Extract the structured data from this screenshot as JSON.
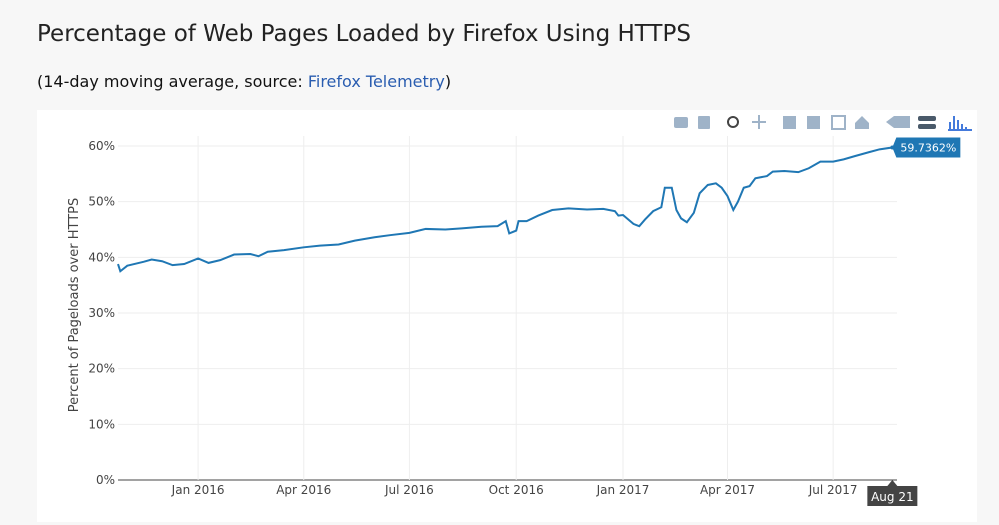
{
  "title": "Percentage of Web Pages Loaded by Firefox Using HTTPS",
  "subtitle": {
    "before": "(14-day moving average, source: ",
    "link": "Firefox Telemetry",
    "after": ")"
  },
  "chart_data": {
    "type": "line",
    "y_label": "Percent of Pageloads over HTTPS",
    "xlim": [
      "2015-10-24",
      "2017-08-25"
    ],
    "xticks": [
      {
        "value": "2016-01-01",
        "label": "Jan 2016"
      },
      {
        "value": "2016-04-01",
        "label": "Apr 2016"
      },
      {
        "value": "2016-07-01",
        "label": "Jul 2016"
      },
      {
        "value": "2016-10-01",
        "label": "Oct 2016"
      },
      {
        "value": "2017-01-01",
        "label": "Jan 2017"
      },
      {
        "value": "2017-04-01",
        "label": "Apr 2017"
      },
      {
        "value": "2017-07-01",
        "label": "Jul 2017"
      }
    ],
    "ylim": [
      0,
      60
    ],
    "yticks": [
      {
        "value": 0,
        "label": "0%"
      },
      {
        "value": 10,
        "label": "10%"
      },
      {
        "value": 20,
        "label": "20%"
      },
      {
        "value": 30,
        "label": "30%"
      },
      {
        "value": 40,
        "label": "40%"
      },
      {
        "value": 50,
        "label": "50%"
      },
      {
        "value": 60,
        "label": "60%"
      }
    ],
    "grid": true,
    "x": [
      "2015-10-24",
      "2015-10-26",
      "2015-11-01",
      "2015-11-15",
      "2015-11-22",
      "2015-12-01",
      "2015-12-10",
      "2015-12-20",
      "2016-01-01",
      "2016-01-10",
      "2016-01-20",
      "2016-02-01",
      "2016-02-15",
      "2016-02-22",
      "2016-03-01",
      "2016-03-15",
      "2016-04-01",
      "2016-04-15",
      "2016-05-01",
      "2016-05-15",
      "2016-06-01",
      "2016-06-15",
      "2016-07-01",
      "2016-07-15",
      "2016-08-01",
      "2016-08-15",
      "2016-09-01",
      "2016-09-15",
      "2016-09-22",
      "2016-09-25",
      "2016-10-01",
      "2016-10-03",
      "2016-10-10",
      "2016-10-20",
      "2016-11-01",
      "2016-11-15",
      "2016-12-01",
      "2016-12-15",
      "2016-12-25",
      "2016-12-28",
      "2017-01-01",
      "2017-01-10",
      "2017-01-15",
      "2017-01-20",
      "2017-01-27",
      "2017-02-03",
      "2017-02-06",
      "2017-02-12",
      "2017-02-16",
      "2017-02-20",
      "2017-02-25",
      "2017-03-03",
      "2017-03-08",
      "2017-03-15",
      "2017-03-22",
      "2017-03-27",
      "2017-04-01",
      "2017-04-06",
      "2017-04-10",
      "2017-04-15",
      "2017-04-20",
      "2017-04-25",
      "2017-05-05",
      "2017-05-10",
      "2017-05-20",
      "2017-06-01",
      "2017-06-10",
      "2017-06-20",
      "2017-07-01",
      "2017-07-10",
      "2017-07-20",
      "2017-08-01",
      "2017-08-10",
      "2017-08-21"
    ],
    "series": [
      {
        "name": "HTTPS",
        "color": "#1f77b4",
        "values": [
          38.8,
          37.5,
          38.5,
          39.2,
          39.6,
          39.3,
          38.6,
          38.8,
          39.8,
          39.0,
          39.5,
          40.5,
          40.6,
          40.2,
          41.0,
          41.3,
          41.8,
          42.1,
          42.3,
          43.0,
          43.6,
          44.0,
          44.4,
          45.1,
          45.0,
          45.2,
          45.5,
          45.6,
          46.5,
          44.3,
          44.8,
          46.5,
          46.5,
          47.5,
          48.5,
          48.8,
          48.6,
          48.7,
          48.3,
          47.5,
          47.6,
          46.0,
          45.6,
          46.8,
          48.3,
          49.0,
          52.5,
          52.5,
          48.5,
          47.0,
          46.3,
          48.0,
          51.5,
          53.0,
          53.3,
          52.5,
          51.0,
          48.5,
          50.0,
          52.5,
          52.8,
          54.2,
          54.6,
          55.4,
          55.5,
          55.3,
          56.0,
          57.2,
          57.2,
          57.6,
          58.2,
          58.9,
          59.4,
          59.7362
        ]
      }
    ],
    "hover_x_label": "Aug 21",
    "hover_value_label": "59.7362%"
  }
}
